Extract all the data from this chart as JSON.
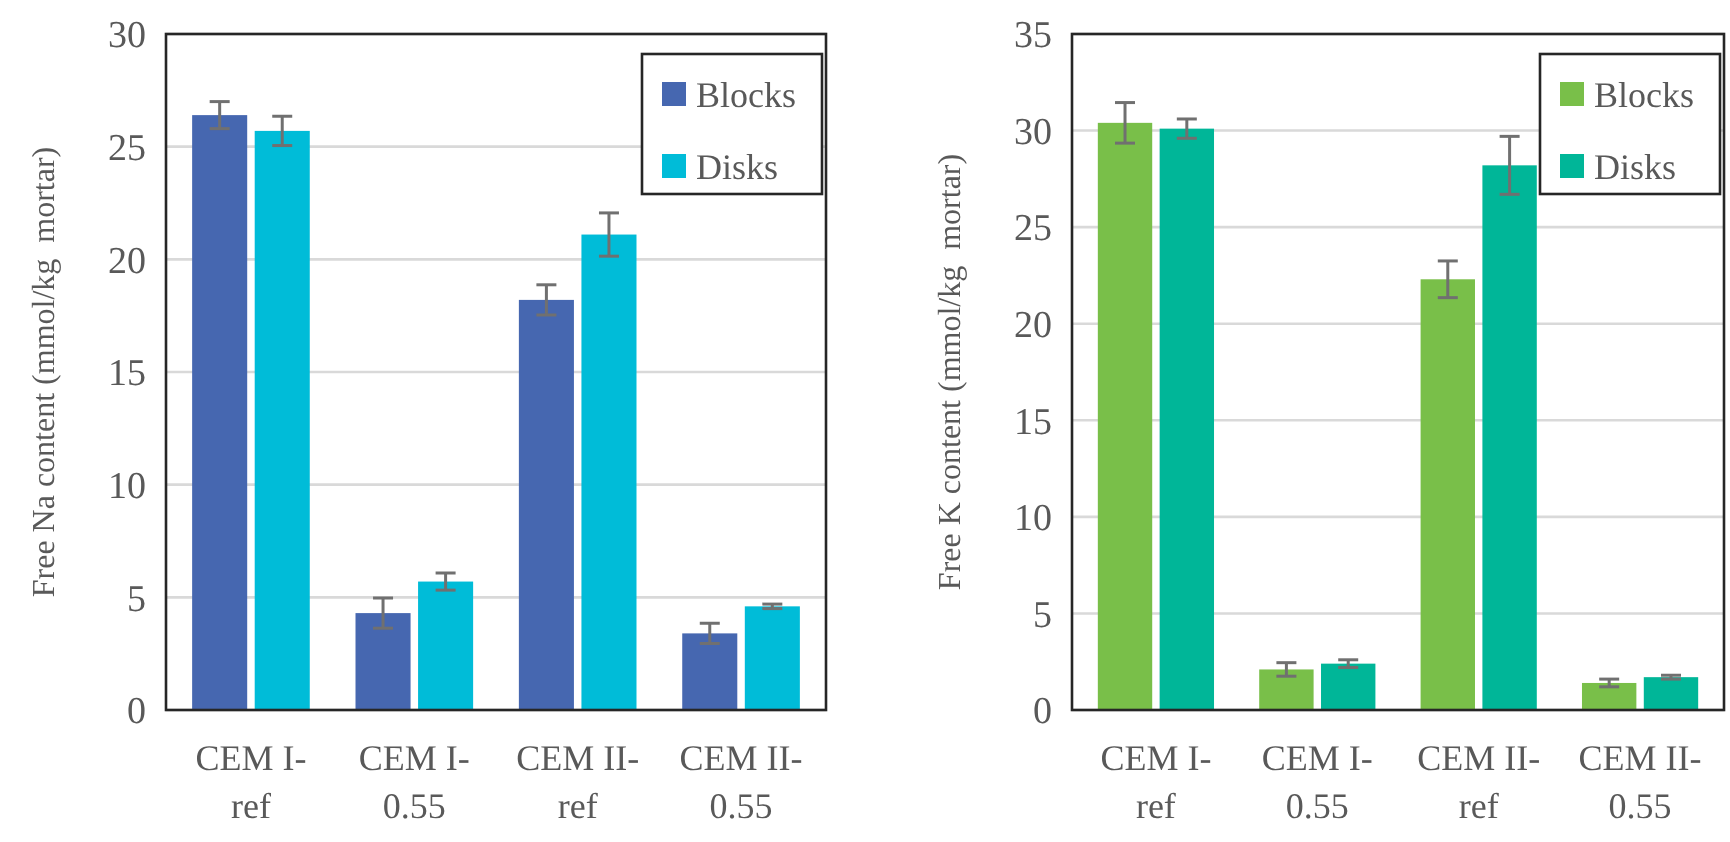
{
  "chart_data": [
    {
      "type": "bar",
      "ylabel": "Free Na content (mmol/kg  mortar)",
      "categories": [
        "CEM I-ref",
        "CEM I-0.55",
        "CEM II-ref",
        "CEM II-0.55"
      ],
      "ylim": [
        0,
        30
      ],
      "yticks": [
        0,
        5,
        10,
        15,
        20,
        25,
        30
      ],
      "grid": "y",
      "legend": "top right",
      "series": [
        {
          "name": "Blocks",
          "color": "#4667b0",
          "values": [
            26.4,
            4.3,
            18.2,
            3.4
          ],
          "errors": [
            0.6,
            0.67,
            0.67,
            0.45
          ]
        },
        {
          "name": "Disks",
          "color": "#00bcd8",
          "values": [
            25.7,
            5.7,
            21.1,
            4.6
          ],
          "errors": [
            0.65,
            0.38,
            0.96,
            0.1
          ]
        }
      ]
    },
    {
      "type": "bar",
      "ylabel": "Free K content (mmol/kg  mortar)",
      "categories": [
        "CEM I-ref",
        "CEM I-0.55",
        "CEM II-ref",
        "CEM II-0.55"
      ],
      "ylim": [
        0,
        35
      ],
      "yticks": [
        0,
        5,
        10,
        15,
        20,
        25,
        30,
        35
      ],
      "grid": "y",
      "legend": "top right",
      "series": [
        {
          "name": "Blocks",
          "color": "#79bf49",
          "values": [
            30.4,
            2.1,
            22.3,
            1.4
          ],
          "errors": [
            1.05,
            0.35,
            0.95,
            0.2
          ]
        },
        {
          "name": "Disks",
          "color": "#00b698",
          "values": [
            30.1,
            2.4,
            28.2,
            1.7
          ],
          "errors": [
            0.5,
            0.2,
            1.5,
            0.1
          ]
        }
      ]
    }
  ]
}
